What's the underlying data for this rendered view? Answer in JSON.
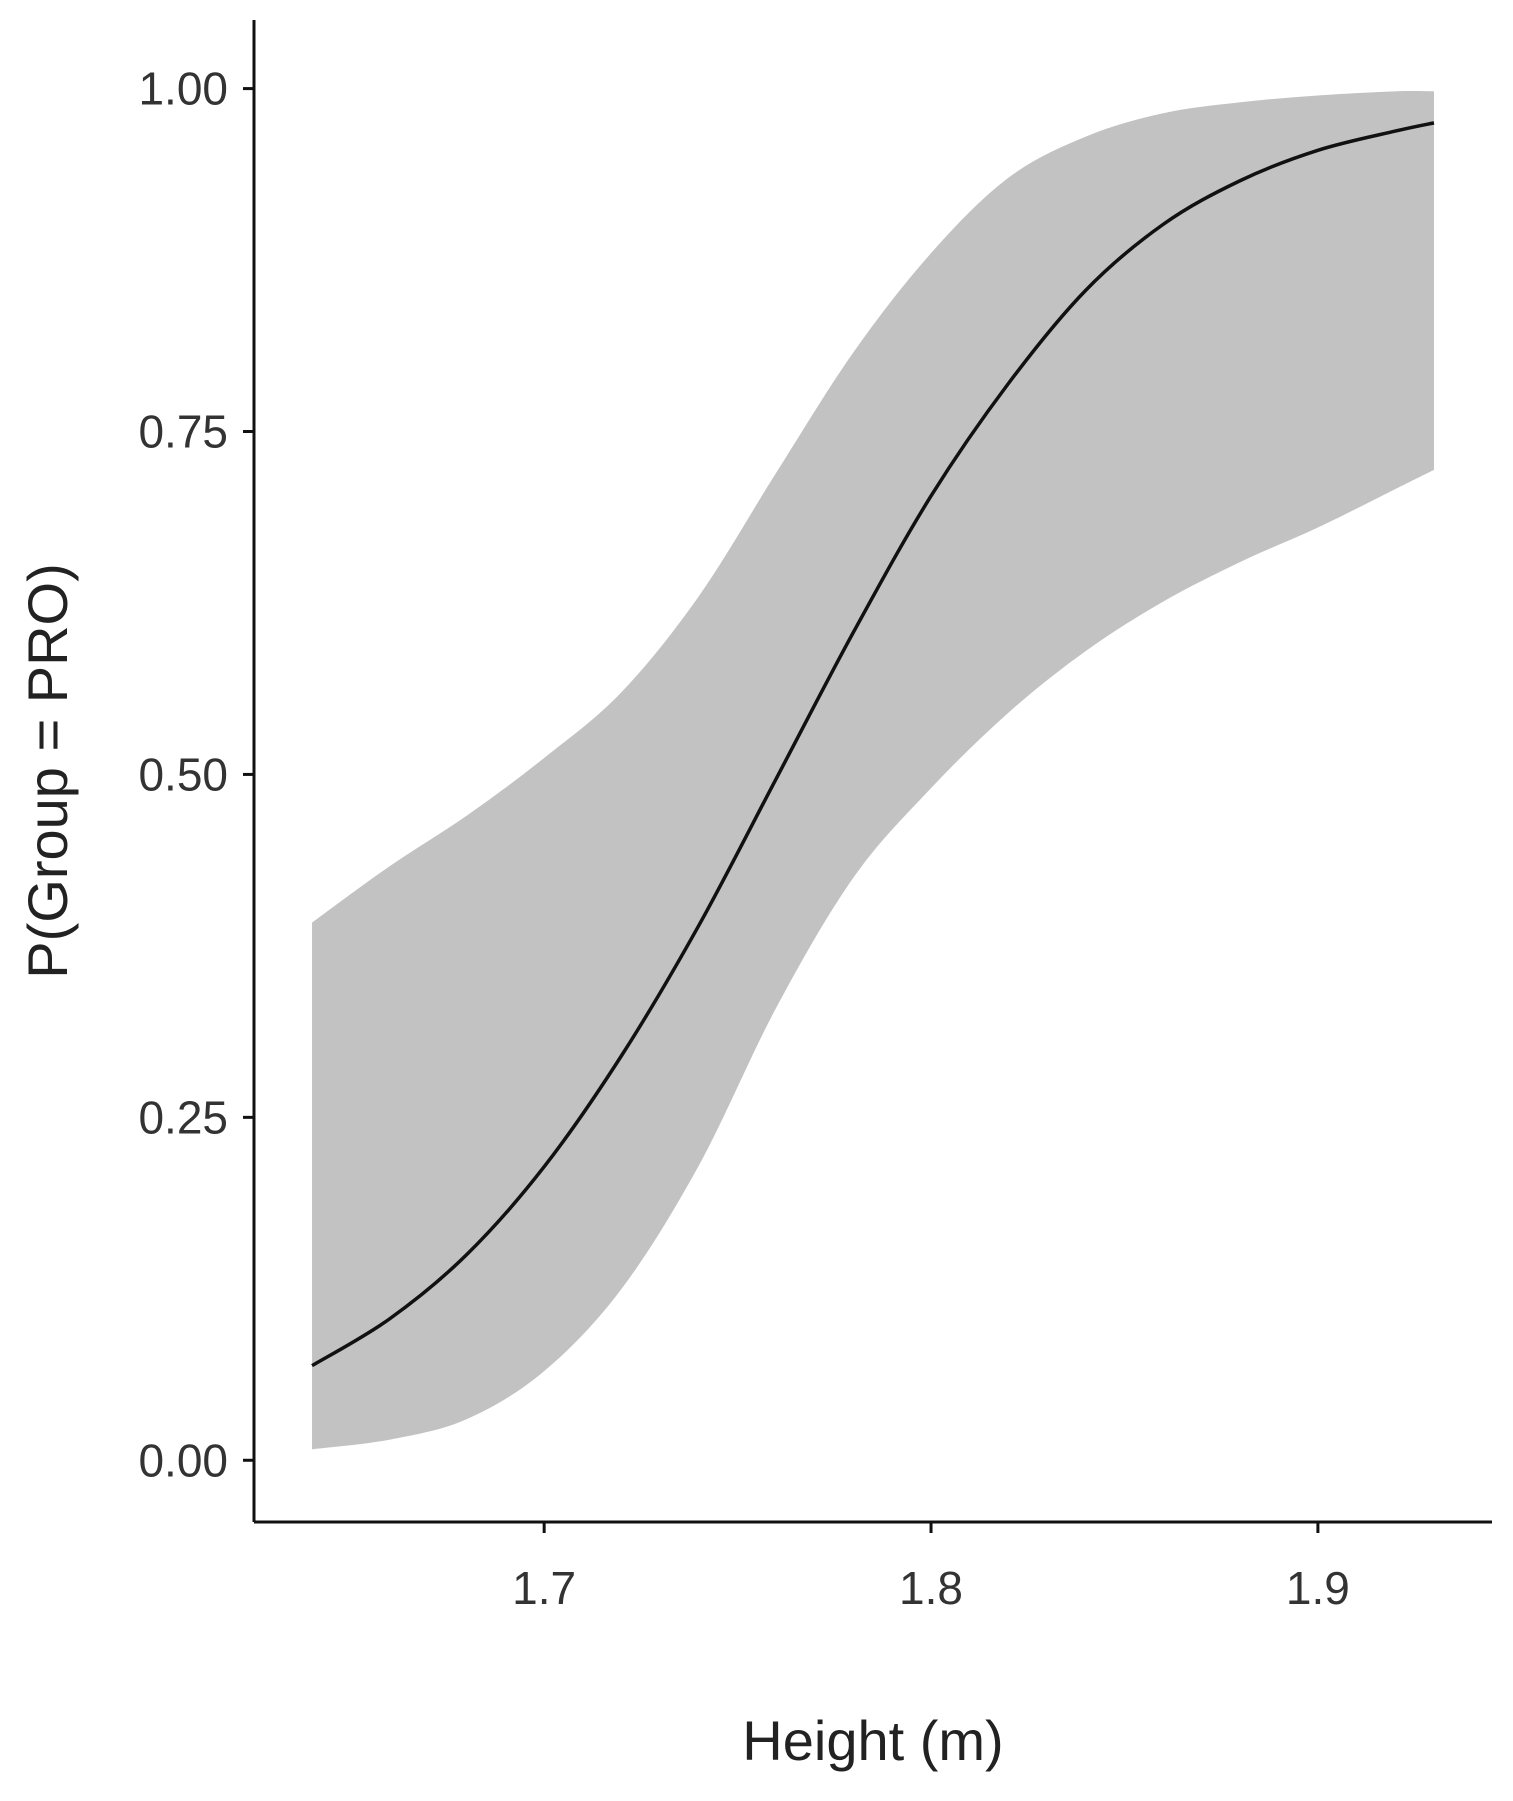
{
  "chart_data": {
    "type": "line",
    "xlabel": "Height (m)",
    "ylabel": "P(Group = PRO)",
    "xlim": [
      1.625,
      1.945
    ],
    "ylim": [
      -0.045,
      1.05
    ],
    "x_ticks": [
      1.7,
      1.8,
      1.9
    ],
    "x_tick_labels": [
      "1.7",
      "1.8",
      "1.9"
    ],
    "y_ticks": [
      0,
      0.25,
      0.5,
      0.75,
      1.0
    ],
    "y_tick_labels": [
      "0.00",
      "0.25",
      "0.50",
      "0.75",
      "1.00"
    ],
    "grid": false,
    "legend": "none",
    "colors": {
      "line": "#111111",
      "band": "#c2c2c2"
    },
    "series": [
      {
        "x": [
          1.64,
          1.66,
          1.68,
          1.7,
          1.72,
          1.74,
          1.76,
          1.78,
          1.8,
          1.82,
          1.84,
          1.86,
          1.88,
          1.9,
          1.92,
          1.93
        ],
        "y": [
          0.069,
          0.103,
          0.15,
          0.214,
          0.295,
          0.39,
          0.497,
          0.604,
          0.703,
          0.785,
          0.853,
          0.901,
          0.933,
          0.955,
          0.969,
          0.975
        ],
        "lower": [
          0.008,
          0.015,
          0.03,
          0.065,
          0.125,
          0.215,
          0.33,
          0.425,
          0.49,
          0.545,
          0.59,
          0.626,
          0.655,
          0.68,
          0.708,
          0.722
        ],
        "upper": [
          0.392,
          0.433,
          0.47,
          0.512,
          0.56,
          0.63,
          0.72,
          0.808,
          0.88,
          0.935,
          0.965,
          0.982,
          0.99,
          0.995,
          0.998,
          0.998
        ]
      }
    ]
  }
}
